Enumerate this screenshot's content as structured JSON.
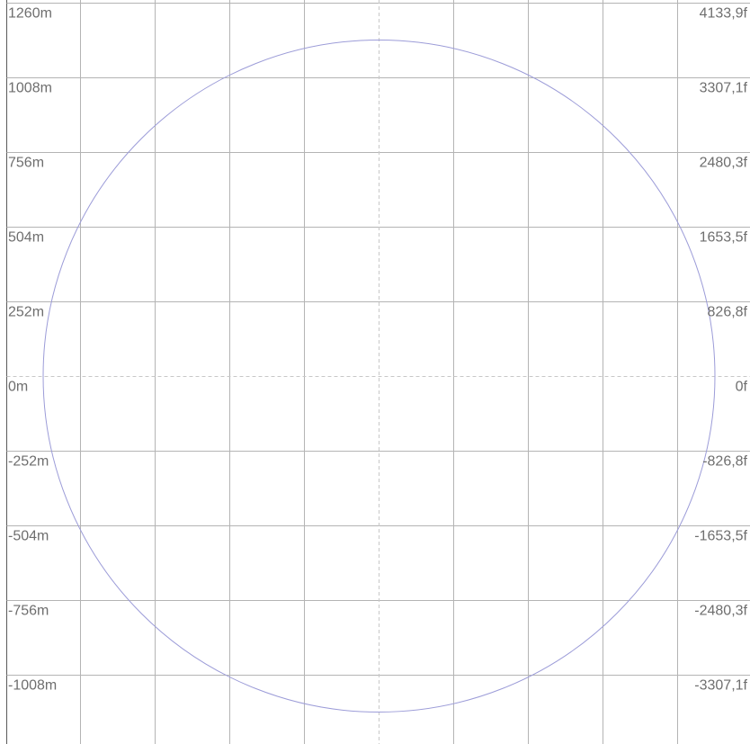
{
  "chart_data": {
    "type": "range-ring-grid",
    "left_axis_unit": "m",
    "right_axis_unit": "f",
    "y_range_m": [
      -1260,
      1260
    ],
    "rows": [
      {
        "value_m": 1260,
        "left_label": "1260m",
        "right_label": "4133,9f"
      },
      {
        "value_m": 1008,
        "left_label": "1008m",
        "right_label": "3307,1f"
      },
      {
        "value_m": 756,
        "left_label": "756m",
        "right_label": "2480,3f"
      },
      {
        "value_m": 504,
        "left_label": "504m",
        "right_label": "1653,5f"
      },
      {
        "value_m": 252,
        "left_label": "252m",
        "right_label": "826,8f"
      },
      {
        "value_m": 0,
        "left_label": "0m",
        "right_label": "0f"
      },
      {
        "value_m": -252,
        "left_label": "-252m",
        "right_label": "-826,8f"
      },
      {
        "value_m": -504,
        "left_label": "-504m",
        "right_label": "-1653,5f"
      },
      {
        "value_m": -756,
        "left_label": "-756m",
        "right_label": "-2480,3f"
      },
      {
        "value_m": -1008,
        "left_label": "-1008m",
        "right_label": "-3307,1f"
      }
    ],
    "vertical_gridlines": 9,
    "center_crosshair": "dashed",
    "circle": {
      "center_m": [
        0,
        0
      ],
      "radius_m": 1134
    }
  },
  "colors": {
    "grid": "#b4b4b4",
    "crosshair": "#c8c8c8",
    "circle": "#9c9cd8",
    "label": "#6e6e6e",
    "frame": "#5a5a5a"
  }
}
